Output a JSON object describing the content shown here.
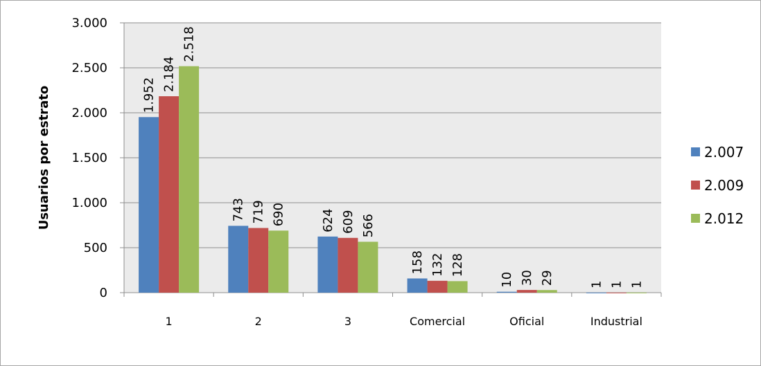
{
  "chart_data": {
    "type": "bar",
    "title": "",
    "xlabel": "",
    "ylabel": "Usuarios por estrato",
    "categories": [
      "1",
      "2",
      "3",
      "Comercial",
      "Oficial",
      "Industrial"
    ],
    "series": [
      {
        "name": "2.007",
        "color": "#4f81bd",
        "values": [
          1952,
          743,
          624,
          158,
          10,
          1
        ],
        "labels": [
          "1.952",
          "743",
          "624",
          "158",
          "10",
          "1"
        ]
      },
      {
        "name": "2.009",
        "color": "#c0504d",
        "values": [
          2184,
          719,
          609,
          132,
          30,
          1
        ],
        "labels": [
          "2.184",
          "719",
          "609",
          "132",
          "30",
          "1"
        ]
      },
      {
        "name": "2.012",
        "color": "#9bbb59",
        "values": [
          2518,
          690,
          566,
          128,
          29,
          1
        ],
        "labels": [
          "2.518",
          "690",
          "566",
          "128",
          "29",
          "1"
        ]
      }
    ],
    "ylim": [
      0,
      3000
    ],
    "yticks": [
      0,
      500,
      1000,
      1500,
      2000,
      2500,
      3000
    ],
    "ytick_labels": [
      "0",
      "500",
      "1.000",
      "1.500",
      "2.000",
      "2.500",
      "3.000"
    ],
    "grid": true,
    "legend_position": "right",
    "plot_background": "#ebebeb"
  }
}
